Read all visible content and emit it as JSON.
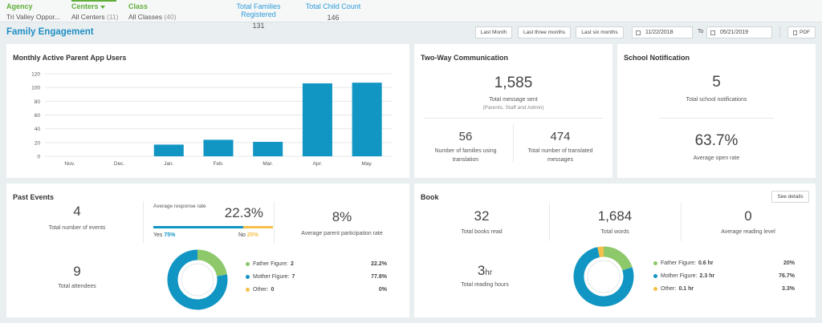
{
  "filters": {
    "agency": {
      "label": "Agency",
      "value": "Tri Valley Oppor..."
    },
    "centers": {
      "label": "Centers",
      "value": "All Centers",
      "count": "(11)"
    },
    "class": {
      "label": "Class",
      "value": "All Classes",
      "count": "(40)"
    }
  },
  "summary": {
    "families_label": "Total Families Registered",
    "families_value": "131",
    "children_label": "Total Child Count",
    "children_value": "146"
  },
  "page_title": "Family Engagement",
  "toolbar": {
    "last_month": "Last Month",
    "last_three": "Last three months",
    "last_six": "Last six months",
    "from_date": "11/22/2018",
    "to_label": "To",
    "to_date": "05/21/2019",
    "pdf": "PDF"
  },
  "monthly": {
    "title": "Monthly Active Parent App Users"
  },
  "chart_data": {
    "type": "bar",
    "categories": [
      "Nov.",
      "Dec.",
      "Jan.",
      "Feb.",
      "Mar.",
      "Apr.",
      "May."
    ],
    "values": [
      0,
      0,
      17,
      24,
      21,
      106,
      107
    ],
    "yticks": [
      "0",
      "20",
      "40",
      "60",
      "80",
      "100",
      "120"
    ],
    "ylim": [
      0,
      120
    ],
    "color": "#1196c3",
    "grid": true
  },
  "two_way": {
    "title": "Two-Way Communication",
    "total_value": "1,585",
    "total_label": "Total message sent",
    "total_sub": "(Parents, Staff and Admin)",
    "families_value": "56",
    "families_label": "Number of families using translation",
    "translated_value": "474",
    "translated_label": "Total number of translated messages"
  },
  "school": {
    "title": "School Notification",
    "count_value": "5",
    "count_label": "Total school notifications",
    "rate_value": "63.7%",
    "rate_label": "Average open rate"
  },
  "past_events": {
    "title": "Past Events",
    "events_value": "4",
    "events_label": "Total number of events",
    "response_label": "Average response rate",
    "response_value": "22.3%",
    "yes_label": "Yes",
    "yes_value": "75%",
    "no_label": "No",
    "no_value": "25%",
    "yes_fraction": 0.75,
    "participation_value": "8%",
    "participation_label": "Average parent participation rate",
    "attendees_value": "9",
    "attendees_label": "Total attendees",
    "legend": [
      {
        "name": "Father Figure:",
        "amount": "2",
        "pct": "22.2%",
        "color": "#8dc96b",
        "fraction": 0.222
      },
      {
        "name": "Mother Figure:",
        "amount": "7",
        "pct": "77.8%",
        "color": "#1196c3",
        "fraction": 0.778
      },
      {
        "name": "Other:",
        "amount": "0",
        "pct": "0%",
        "color": "#f5c04a",
        "fraction": 0
      }
    ]
  },
  "book": {
    "title": "Book",
    "see_details": "See details",
    "books_value": "32",
    "books_label": "Total books read",
    "words_value": "1,684",
    "words_label": "Total words",
    "level_value": "0",
    "level_label": "Average reading level",
    "hours_value": "3",
    "hours_unit": "hr",
    "hours_label": "Total reading hours",
    "legend": [
      {
        "name": "Father Figure:",
        "amount": "0.6 hr",
        "pct": "20%",
        "color": "#8dc96b",
        "fraction": 0.2
      },
      {
        "name": "Mother Figure:",
        "amount": "2.3 hr",
        "pct": "76.7%",
        "color": "#1196c3",
        "fraction": 0.767
      },
      {
        "name": "Other:",
        "amount": "0.1 hr",
        "pct": "3.3%",
        "color": "#f5c04a",
        "fraction": 0.033
      }
    ]
  }
}
